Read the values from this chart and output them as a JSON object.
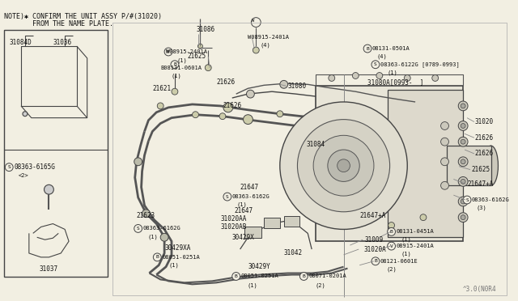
{
  "bg_color": "#f2efe2",
  "line_color": "#444444",
  "text_color": "#111111",
  "note_line1": "NOTE)✱ CONFIRM THE UNIT ASSY P/#(31020)",
  "note_line2": "       FROM THE NAME PLATE.",
  "watermark": "^3.0(N0R4",
  "fig_width": 6.4,
  "fig_height": 3.72,
  "dpi": 100
}
